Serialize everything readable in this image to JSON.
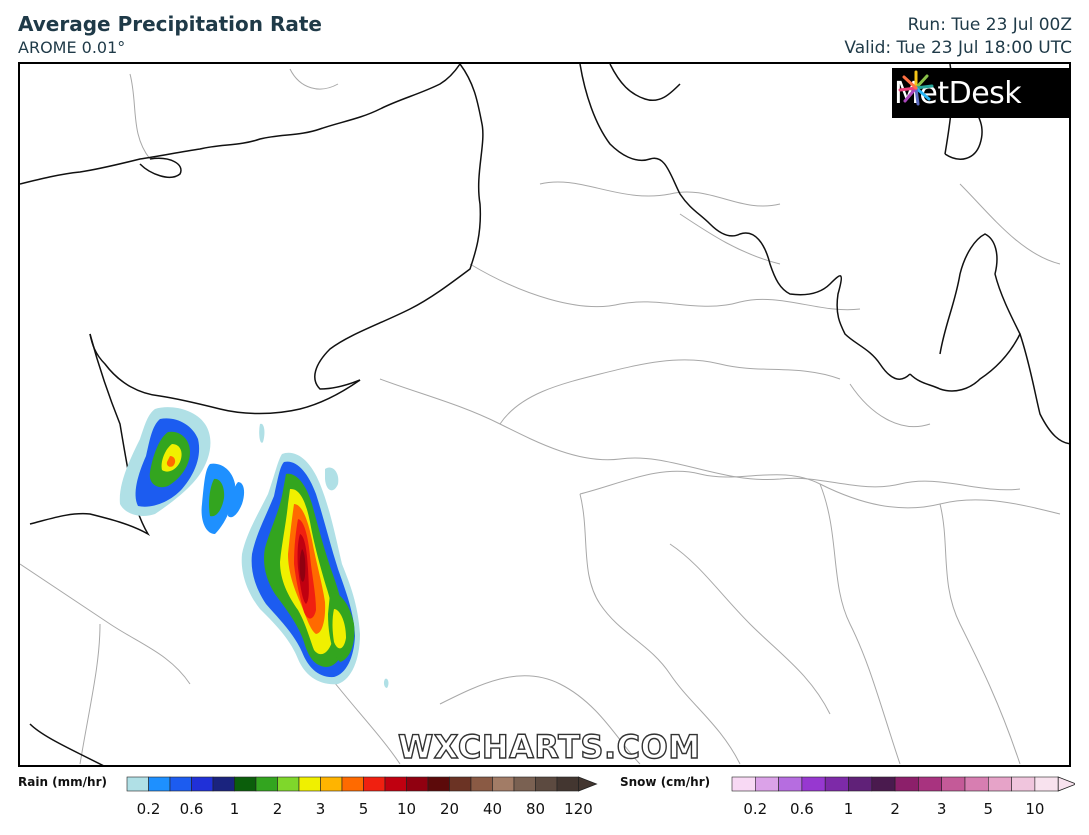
{
  "header": {
    "title": "Average Precipitation Rate",
    "subtitle": "AROME 0.01°",
    "run": "Run: Tue 23 Jul 00Z",
    "valid": "Valid: Tue 23 Jul 18:00 UTC"
  },
  "logo": {
    "text": "MetDesk"
  },
  "watermark": "WXCHARTS.COM",
  "rain_legend": {
    "label": "Rain (mm/hr)",
    "ticks": [
      "0.2",
      "0.6",
      "1",
      "2",
      "3",
      "5",
      "10",
      "20",
      "40",
      "80",
      "120"
    ],
    "colors": [
      "#b0e0e6",
      "#1e90ff",
      "#1c5cf0",
      "#2030d8",
      "#1a237e",
      "#0b5e0b",
      "#33a51f",
      "#7fd72b",
      "#f0f000",
      "#ffb400",
      "#ff6a00",
      "#f02010",
      "#c00010",
      "#900010",
      "#5c0a0a",
      "#6b3324",
      "#8a5a44",
      "#a27c66",
      "#7a6152",
      "#5c4a40",
      "#433630"
    ]
  },
  "snow_legend": {
    "label": "Snow (cm/hr)",
    "ticks": [
      "0.2",
      "0.6",
      "1",
      "2",
      "3",
      "5",
      "10"
    ],
    "colors": [
      "#f8d9f4",
      "#dba2e8",
      "#b66de0",
      "#9738d0",
      "#7d2aa8",
      "#602178",
      "#4a1a4e",
      "#8c1f6a",
      "#a8337f",
      "#c45a98",
      "#d77eb1",
      "#e6a3c8",
      "#f0c5dd",
      "#f8e2ee"
    ]
  }
}
